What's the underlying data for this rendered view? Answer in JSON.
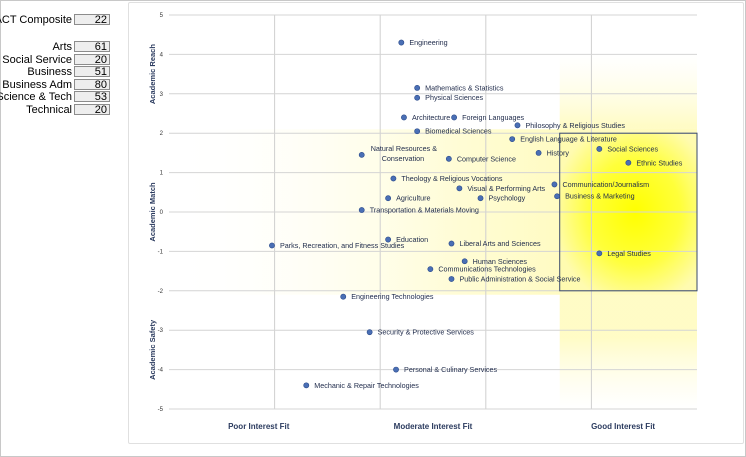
{
  "scores": [
    {
      "label": "ACT Composite",
      "value": "22"
    },
    {
      "label": "Arts",
      "value": "61"
    },
    {
      "label": "Social Service",
      "value": "20"
    },
    {
      "label": "Business",
      "value": "51"
    },
    {
      "label": "Business Adm",
      "value": "80"
    },
    {
      "label": "Science & Tech",
      "value": "53"
    },
    {
      "label": "Technical",
      "value": "20"
    }
  ],
  "chart_data": {
    "type": "scatter",
    "xlim": [
      0,
      100
    ],
    "ylim": [
      -5,
      5
    ],
    "y_ticks": [
      5,
      4,
      3,
      2,
      1,
      0,
      -1,
      -2,
      -3,
      -4,
      -5
    ],
    "x_category_labels": [
      "Poor Interest Fit",
      "Moderate Interest Fit",
      "Good Interest Fit"
    ],
    "y_band_labels": [
      "Academic Reach",
      "Academic Match",
      "Academic Safety"
    ],
    "grid": true,
    "highlight_box": {
      "x": [
        74,
        100
      ],
      "y": [
        -2,
        2
      ]
    },
    "points": [
      {
        "label": "Engineering",
        "x": 44,
        "y": 4.3
      },
      {
        "label": "Mathematics & Statistics",
        "x": 47,
        "y": 3.15
      },
      {
        "label": "Physical Sciences",
        "x": 47,
        "y": 2.9
      },
      {
        "label": "Architecture",
        "x": 44.5,
        "y": 2.4
      },
      {
        "label": "Foreign Languages",
        "x": 54,
        "y": 2.4
      },
      {
        "label": "Philosophy & Religious Studies",
        "x": 66,
        "y": 2.2
      },
      {
        "label": "Biomedical Sciences",
        "x": 47,
        "y": 2.05
      },
      {
        "label": "English Language & Literature",
        "x": 65,
        "y": 1.85
      },
      {
        "label": "Social Sciences",
        "x": 81.5,
        "y": 1.6
      },
      {
        "label": "Natural Resources & Conservation",
        "x": 36.5,
        "y": 1.45
      },
      {
        "label": "History",
        "x": 70,
        "y": 1.5
      },
      {
        "label": "Computer Science",
        "x": 53,
        "y": 1.35
      },
      {
        "label": "Ethnic Studies",
        "x": 87,
        "y": 1.25
      },
      {
        "label": "Theology & Religious Vocations",
        "x": 42.5,
        "y": 0.85
      },
      {
        "label": "Communication/Journalism",
        "x": 73,
        "y": 0.7
      },
      {
        "label": "Visual & Performing Arts",
        "x": 55,
        "y": 0.6
      },
      {
        "label": "Agriculture",
        "x": 41.5,
        "y": 0.35
      },
      {
        "label": "Psychology",
        "x": 59,
        "y": 0.35
      },
      {
        "label": "Business & Marketing",
        "x": 73.5,
        "y": 0.4
      },
      {
        "label": "Transportation & Materials Moving",
        "x": 36.5,
        "y": 0.05
      },
      {
        "label": "Education",
        "x": 41.5,
        "y": -0.7
      },
      {
        "label": "Liberal Arts and Sciences",
        "x": 53.5,
        "y": -0.8
      },
      {
        "label": "Parks, Recreation, and Fitness Studies",
        "x": 19.5,
        "y": -0.85
      },
      {
        "label": "Legal Studies",
        "x": 81.5,
        "y": -1.05
      },
      {
        "label": "Human Sciences",
        "x": 56,
        "y": -1.25
      },
      {
        "label": "Communications Technologies",
        "x": 49.5,
        "y": -1.45
      },
      {
        "label": "Public Administration & Social Service",
        "x": 53.5,
        "y": -1.7
      },
      {
        "label": "Engineering Technologies",
        "x": 33,
        "y": -2.15
      },
      {
        "label": "Security & Protective Services",
        "x": 38,
        "y": -3.05
      },
      {
        "label": "Personal & Culinary Services",
        "x": 43,
        "y": -4.0
      },
      {
        "label": "Mechanic & Repair Technologies",
        "x": 26,
        "y": -4.4
      }
    ]
  }
}
